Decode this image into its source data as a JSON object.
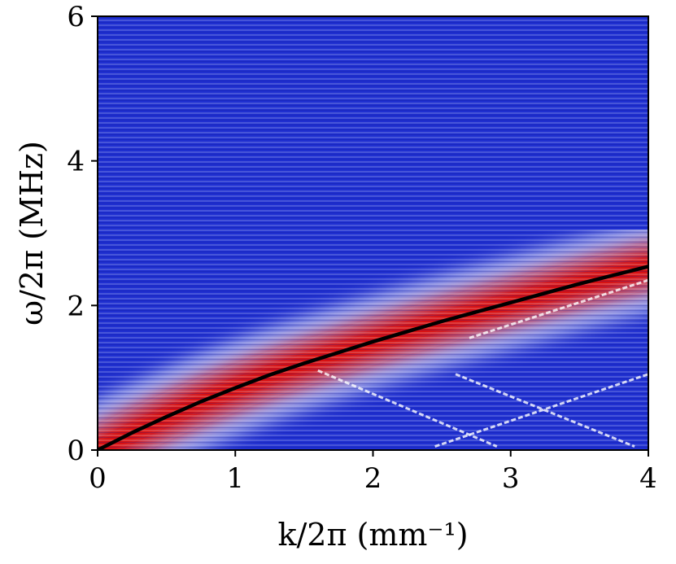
{
  "chart_data": {
    "type": "heatmap",
    "title": "",
    "xlabel": "k/2π (mm⁻¹)",
    "ylabel": "ω/2π (MHz)",
    "xlim": [
      0,
      4
    ],
    "ylim": [
      0,
      6
    ],
    "xticks": [
      0,
      1,
      2,
      3,
      4
    ],
    "yticks": [
      0,
      2,
      4,
      6
    ],
    "xtick_labels": [
      "0",
      "1",
      "2",
      "3",
      "4"
    ],
    "ytick_labels": [
      "0",
      "2",
      "4",
      "6"
    ],
    "colormap": {
      "low": "#1f2fd0",
      "mid": "#ffffff",
      "high": "#d81010"
    },
    "dispersion_curve": {
      "color": "#000000",
      "k": [
        0,
        0.25,
        0.5,
        0.75,
        1.0,
        1.25,
        1.5,
        1.75,
        2.0,
        2.25,
        2.5,
        2.75,
        3.0,
        3.25,
        3.5,
        3.75,
        4.0
      ],
      "omega": [
        0,
        0.24,
        0.46,
        0.67,
        0.86,
        1.04,
        1.2,
        1.35,
        1.5,
        1.64,
        1.78,
        1.91,
        2.04,
        2.17,
        2.3,
        2.42,
        2.54
      ]
    },
    "secondary_branches": [
      {
        "k": [
          2.45,
          4.0
        ],
        "omega": [
          0.05,
          1.05
        ]
      },
      {
        "k": [
          2.7,
          4.0
        ],
        "omega": [
          1.55,
          2.35
        ]
      },
      {
        "k": [
          1.6,
          2.9
        ],
        "omega": [
          1.1,
          0.05
        ]
      },
      {
        "k": [
          2.6,
          3.9
        ],
        "omega": [
          1.05,
          0.05
        ]
      }
    ]
  }
}
